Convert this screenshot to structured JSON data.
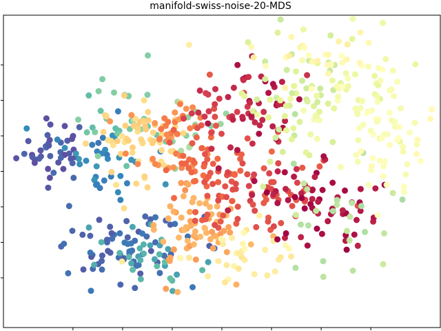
{
  "chart_data": {
    "type": "scatter",
    "title": "manifold-swiss-noise-20-MDS",
    "xlabel": "",
    "ylabel": "",
    "grid": false,
    "colormap": "Spectral",
    "colormap_stops": [
      "#5e4fa2",
      "#3288bd",
      "#66c2a5",
      "#abdda4",
      "#e6f598",
      "#ffffbf",
      "#fee08b",
      "#fdae61",
      "#f46d43",
      "#d53e4f",
      "#9e0142"
    ],
    "marker_color_note": "color encodes position along manifold",
    "xlim": [
      -22,
      22
    ],
    "ylim": [
      -22,
      22
    ],
    "x_ticks": [
      -15,
      -10,
      -5,
      0,
      5,
      10,
      15
    ],
    "y_ticks": [
      -15,
      -10,
      -5,
      0,
      5,
      10,
      15
    ],
    "clusters": [
      {
        "c": 0.02,
        "cx": -17,
        "cy": 3,
        "sx": 1.8,
        "sy": 2.2,
        "n": 40
      },
      {
        "c": 0.05,
        "cx": -10,
        "cy": -11,
        "sx": 3.5,
        "sy": 2.4,
        "n": 70
      },
      {
        "c": 0.1,
        "cx": -12,
        "cy": 2,
        "sx": 2.2,
        "sy": 3.5,
        "n": 35
      },
      {
        "c": 0.17,
        "cx": -7,
        "cy": -12,
        "sx": 2.5,
        "sy": 2,
        "n": 30
      },
      {
        "c": 0.22,
        "cx": -10,
        "cy": 8,
        "sx": 2.5,
        "sy": 3,
        "n": 25
      },
      {
        "c": 0.28,
        "cx": -4,
        "cy": 6,
        "sx": 2.5,
        "sy": 2.5,
        "n": 20
      },
      {
        "c": 0.62,
        "cx": -9,
        "cy": 4,
        "sx": 2.2,
        "sy": 3.5,
        "n": 60
      },
      {
        "c": 0.7,
        "cx": -3,
        "cy": -8,
        "sx": 2.5,
        "sy": 3,
        "n": 70
      },
      {
        "c": 0.76,
        "cx": -5,
        "cy": 4,
        "sx": 2.2,
        "sy": 3,
        "n": 40
      },
      {
        "c": 0.55,
        "cx": 2,
        "cy": -11,
        "sx": 3,
        "sy": 2,
        "n": 35
      },
      {
        "c": 0.83,
        "cx": -2,
        "cy": 1,
        "sx": 3,
        "sy": 4,
        "n": 60
      },
      {
        "c": 0.86,
        "cx": 4,
        "cy": -4,
        "sx": 3.5,
        "sy": 3,
        "n": 60
      },
      {
        "c": 0.9,
        "cx": -1,
        "cy": 9,
        "sx": 2,
        "sy": 2,
        "n": 20
      },
      {
        "c": 0.95,
        "cx": 4,
        "cy": 8,
        "sx": 3,
        "sy": 4,
        "n": 55
      },
      {
        "c": 0.97,
        "cx": 10,
        "cy": -5,
        "sx": 3,
        "sy": 3,
        "n": 55
      },
      {
        "c": 0.38,
        "cx": 8,
        "cy": 10,
        "sx": 3.5,
        "sy": 5,
        "n": 60
      },
      {
        "c": 0.33,
        "cx": 12,
        "cy": -6,
        "sx": 3,
        "sy": 4,
        "n": 25
      },
      {
        "c": 0.45,
        "cx": 13,
        "cy": 11,
        "sx": 3,
        "sy": 4,
        "n": 50
      },
      {
        "c": 0.49,
        "cx": 17,
        "cy": 3,
        "sx": 2.5,
        "sy": 3.5,
        "n": 50
      },
      {
        "c": 0.53,
        "cx": 10,
        "cy": 16,
        "sx": 4,
        "sy": 2,
        "n": 30
      }
    ]
  }
}
